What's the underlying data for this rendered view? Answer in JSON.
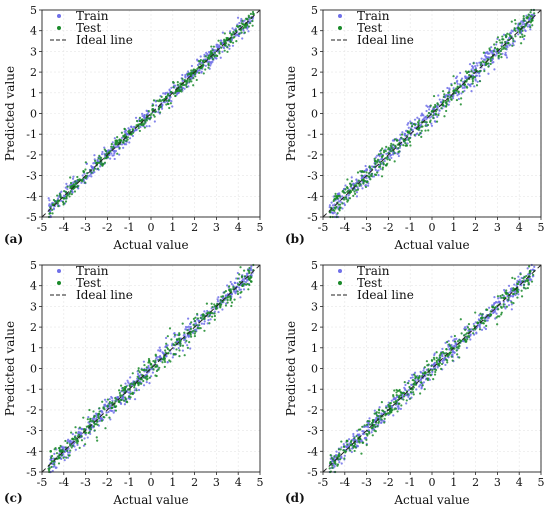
{
  "chart_data": [
    {
      "type": "scatter",
      "panel_label": "(a)",
      "xlabel": "Actual value",
      "ylabel": "Predicted value",
      "xlim": [
        -5,
        5
      ],
      "ylim": [
        -5,
        5
      ],
      "xticks": [
        "-5",
        "-4",
        "-3",
        "-2",
        "-1",
        "0",
        "1",
        "2",
        "3",
        "4",
        "5"
      ],
      "yticks": [
        "-5",
        "-4",
        "-3",
        "-2",
        "-1",
        "0",
        "1",
        "2",
        "3",
        "4",
        "5"
      ],
      "grid": true,
      "legend_position": "top-left",
      "series": [
        {
          "name": "Train",
          "color": "#6f6fe8",
          "marker": "dot",
          "noise_sd": 0.22,
          "x": [
            -4.6,
            -4.2,
            -3.8,
            -3.5,
            -3.1,
            -2.7,
            -2.3,
            -1.9,
            -1.5,
            -1.1,
            -0.7,
            -0.3,
            0.1,
            0.5,
            0.9,
            1.3,
            1.7,
            2.1,
            2.5,
            2.9,
            3.3,
            3.7,
            4.1,
            4.5
          ],
          "y": [
            -4.5,
            -4.0,
            -3.9,
            -3.3,
            -3.2,
            -2.6,
            -2.4,
            -1.8,
            -1.6,
            -1.0,
            -0.8,
            -0.2,
            0.2,
            0.4,
            1.0,
            1.2,
            1.8,
            2.0,
            2.6,
            2.8,
            3.4,
            3.6,
            4.2,
            4.4
          ]
        },
        {
          "name": "Test",
          "color": "#1a8a2a",
          "marker": "dot",
          "noise_sd": 0.2,
          "x": [
            -4.5,
            -4.0,
            -3.6,
            -3.0,
            -2.5,
            -2.0,
            -1.4,
            -0.9,
            -0.4,
            0.2,
            0.7,
            1.2,
            1.8,
            2.3,
            2.8,
            3.4,
            3.9,
            4.4,
            4.7
          ],
          "y": [
            -4.4,
            -4.1,
            -3.5,
            -3.1,
            -2.4,
            -2.1,
            -1.3,
            -1.0,
            -0.3,
            0.1,
            0.8,
            1.1,
            1.9,
            2.2,
            2.9,
            3.3,
            4.0,
            4.3,
            4.8
          ]
        },
        {
          "name": "Ideal line",
          "color": "#222222",
          "style": "dashed",
          "x": [
            -5,
            5
          ],
          "y": [
            -5,
            5
          ]
        }
      ]
    },
    {
      "type": "scatter",
      "panel_label": "(b)",
      "xlabel": "Actual value",
      "ylabel": "Predicted value",
      "xlim": [
        -5,
        5
      ],
      "ylim": [
        -5,
        5
      ],
      "xticks": [
        "-5",
        "-4",
        "-3",
        "-2",
        "-1",
        "0",
        "1",
        "2",
        "3",
        "4",
        "5"
      ],
      "yticks": [
        "-5",
        "-4",
        "-3",
        "-2",
        "-1",
        "0",
        "1",
        "2",
        "3",
        "4",
        "5"
      ],
      "grid": true,
      "legend_position": "top-left",
      "series": [
        {
          "name": "Train",
          "color": "#6f6fe8",
          "marker": "dot",
          "noise_sd": 0.28,
          "x": [
            -4.3,
            -3.6,
            -3.0,
            -2.4,
            -1.9,
            -1.4,
            -0.9,
            -0.4,
            0.1,
            0.6,
            1.1,
            1.6,
            2.1,
            2.6,
            3.1,
            3.6,
            4.1,
            4.5
          ],
          "y": [
            -3.9,
            -3.4,
            -2.7,
            -2.5,
            -1.7,
            -1.2,
            -0.8,
            -0.3,
            0.2,
            0.8,
            1.0,
            1.7,
            2.0,
            2.7,
            3.0,
            3.7,
            4.0,
            4.6
          ]
        },
        {
          "name": "Test",
          "color": "#1a8a2a",
          "marker": "dot",
          "noise_sd": 0.3,
          "x": [
            -3.2,
            -2.6,
            -2.1,
            -1.6,
            -1.1,
            -0.6,
            0.0,
            0.5,
            1.0,
            1.5,
            2.0,
            2.5,
            3.0,
            3.5,
            4.0,
            4.6
          ],
          "y": [
            -2.8,
            -2.3,
            -2.5,
            -1.3,
            -0.9,
            -0.7,
            0.1,
            0.4,
            1.1,
            1.4,
            2.1,
            2.4,
            3.1,
            3.4,
            4.1,
            4.5
          ]
        },
        {
          "name": "Ideal line",
          "color": "#222222",
          "style": "dashed",
          "x": [
            -5,
            5
          ],
          "y": [
            -5,
            5
          ]
        }
      ]
    },
    {
      "type": "scatter",
      "panel_label": "(c)",
      "xlabel": "Actual value",
      "ylabel": "Predicted value",
      "xlim": [
        -5,
        5
      ],
      "ylim": [
        -5,
        5
      ],
      "xticks": [
        "-5",
        "-4",
        "-3",
        "-2",
        "-1",
        "0",
        "1",
        "2",
        "3",
        "4",
        "5"
      ],
      "yticks": [
        "-5",
        "-4",
        "-3",
        "-2",
        "-1",
        "0",
        "1",
        "2",
        "3",
        "4",
        "5"
      ],
      "grid": true,
      "legend_position": "top-left",
      "series": [
        {
          "name": "Train",
          "color": "#6f6fe8",
          "marker": "dot",
          "noise_sd": 0.25,
          "x": [
            -4.6,
            -4.1,
            -3.7,
            -3.2,
            -2.8,
            -2.3,
            -1.8,
            -1.3,
            -0.8,
            -0.3,
            0.2,
            0.7,
            1.2,
            1.7,
            2.2,
            2.7,
            3.2,
            3.7,
            4.2,
            4.6
          ],
          "y": [
            -4.4,
            -4.2,
            -3.5,
            -3.3,
            -2.7,
            -2.4,
            -1.7,
            -1.4,
            -0.7,
            -0.4,
            0.3,
            0.6,
            1.3,
            1.6,
            2.3,
            2.6,
            3.3,
            3.6,
            4.1,
            4.5
          ]
        },
        {
          "name": "Test",
          "color": "#1a8a2a",
          "marker": "dot",
          "noise_sd": 0.3,
          "x": [
            -4.6,
            -4.2,
            -3.6,
            -3.0,
            -2.4,
            -1.8,
            -1.2,
            -0.6,
            0.0,
            0.6,
            1.2,
            1.8,
            2.4,
            3.0,
            3.6,
            4.2,
            4.6
          ],
          "y": [
            -4.0,
            -4.3,
            -3.4,
            -3.1,
            -2.2,
            -1.9,
            -1.0,
            -0.7,
            0.2,
            0.5,
            1.4,
            1.7,
            2.6,
            2.9,
            3.8,
            4.0,
            4.2
          ]
        },
        {
          "name": "Ideal line",
          "color": "#222222",
          "style": "dashed",
          "x": [
            -5,
            5
          ],
          "y": [
            -5,
            5
          ]
        }
      ]
    },
    {
      "type": "scatter",
      "panel_label": "(d)",
      "xlabel": "Actual value",
      "ylabel": "Predicted value",
      "xlim": [
        -5,
        5
      ],
      "ylim": [
        -5,
        5
      ],
      "xticks": [
        "-5",
        "-4",
        "-3",
        "-2",
        "-1",
        "0",
        "1",
        "2",
        "3",
        "4",
        "5"
      ],
      "yticks": [
        "-5",
        "-4",
        "-3",
        "-2",
        "-1",
        "0",
        "1",
        "2",
        "3",
        "4",
        "5"
      ],
      "grid": true,
      "legend_position": "top-left",
      "series": [
        {
          "name": "Train",
          "color": "#6f6fe8",
          "marker": "dot",
          "noise_sd": 0.26,
          "x": [
            -4.4,
            -3.9,
            -3.4,
            -2.9,
            -2.4,
            -1.9,
            -1.4,
            -0.9,
            -0.4,
            0.1,
            0.6,
            1.1,
            1.6,
            2.1,
            2.6,
            3.1,
            3.6,
            4.1,
            4.5
          ],
          "y": [
            -4.2,
            -3.8,
            -3.2,
            -3.0,
            -2.3,
            -2.0,
            -1.3,
            -1.0,
            -0.3,
            0.2,
            0.5,
            1.2,
            1.5,
            2.2,
            2.5,
            3.2,
            3.5,
            4.2,
            4.6
          ]
        },
        {
          "name": "Test",
          "color": "#1a8a2a",
          "marker": "dot",
          "noise_sd": 0.28,
          "x": [
            -3.9,
            -3.3,
            -2.7,
            -2.1,
            -1.5,
            -0.9,
            -0.3,
            0.3,
            0.9,
            1.5,
            2.1,
            2.7,
            3.3,
            3.9,
            4.5
          ],
          "y": [
            -3.5,
            -3.4,
            -2.5,
            -2.2,
            -1.4,
            -1.0,
            -0.2,
            0.2,
            1.0,
            1.4,
            2.2,
            2.6,
            3.4,
            3.8,
            4.7
          ]
        },
        {
          "name": "Ideal line",
          "color": "#222222",
          "style": "dashed",
          "x": [
            -5,
            5
          ],
          "y": [
            -5,
            5
          ]
        }
      ]
    }
  ]
}
